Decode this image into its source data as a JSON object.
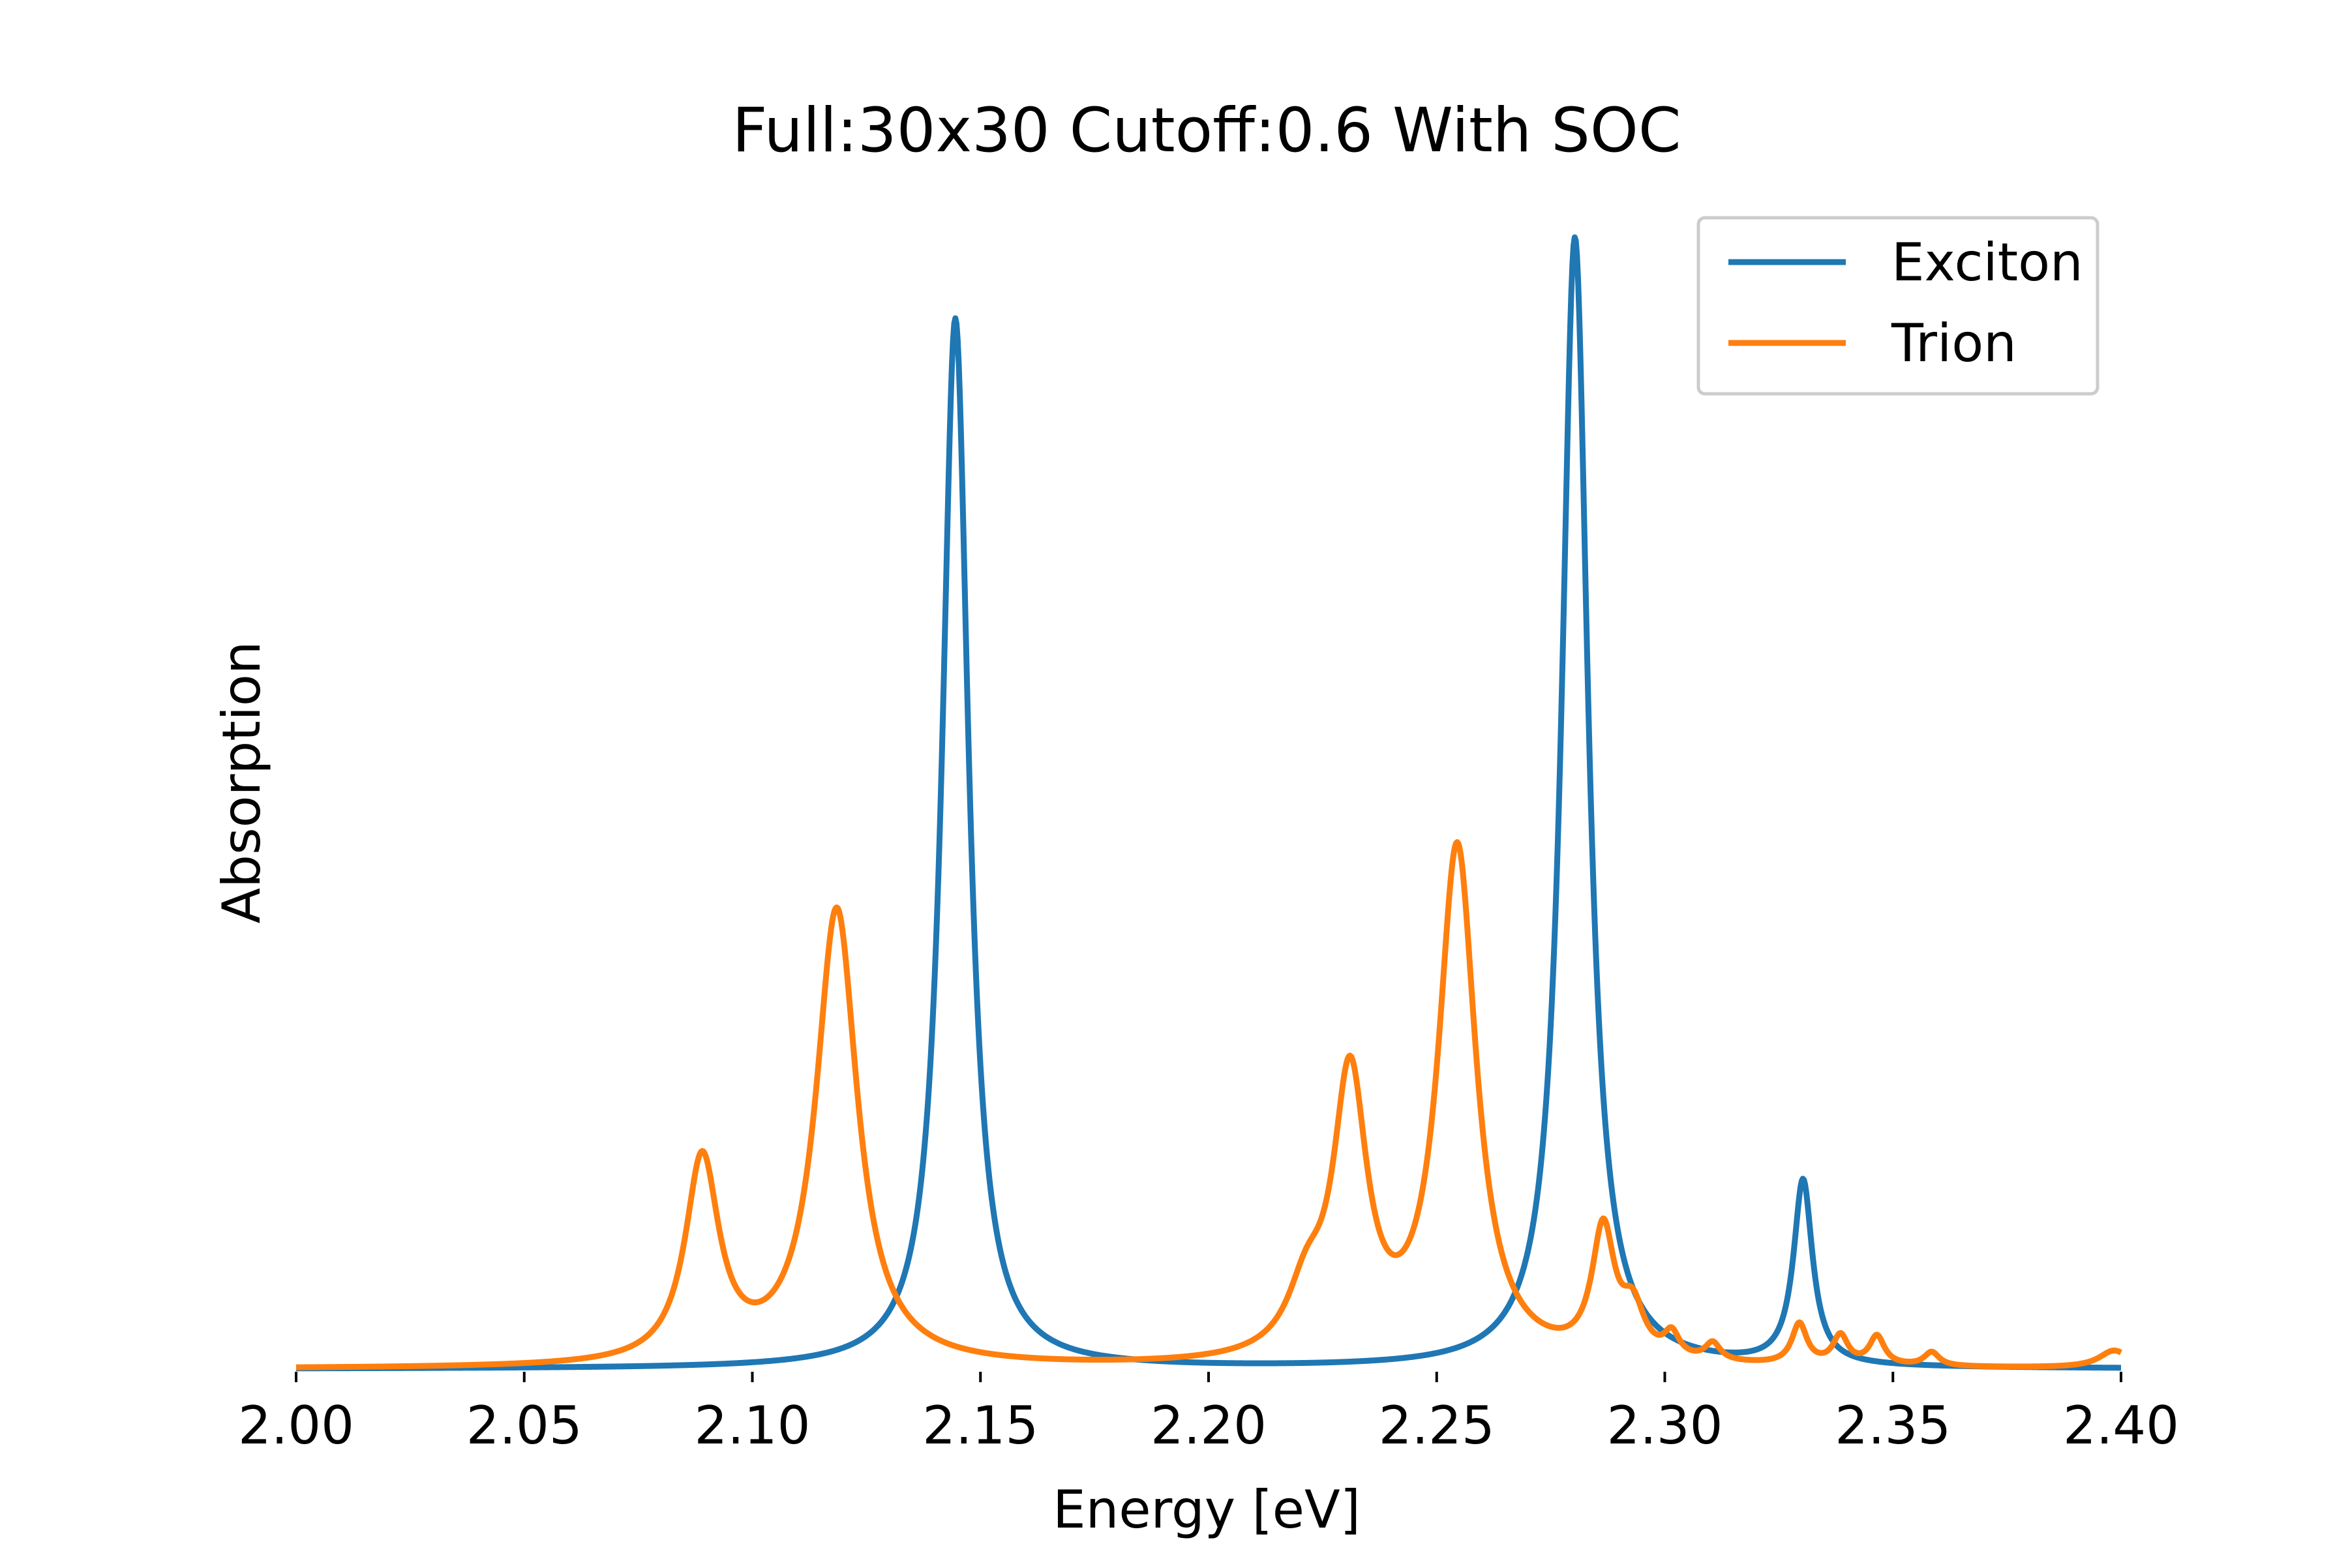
{
  "chart_data": {
    "type": "line",
    "title": "Full:30x30 Cutoff:0.6 With SOC",
    "xlabel": "Energy [eV]",
    "ylabel": "Absorption",
    "xlim": [
      2.0,
      2.4
    ],
    "ylim": [
      0,
      1.0
    ],
    "x_ticks": [
      "2.00",
      "2.05",
      "2.10",
      "2.15",
      "2.20",
      "2.25",
      "2.30",
      "2.35",
      "2.40"
    ],
    "y_ticks_shown": false,
    "grid": false,
    "legend_position": "top-right",
    "series": [
      {
        "name": "Exciton",
        "color": "#1f77b4",
        "peaks": [
          {
            "center": 2.1445,
            "amplitude": 0.91,
            "width": 0.0035
          },
          {
            "center": 2.2803,
            "amplitude": 0.98,
            "width": 0.0035
          },
          {
            "center": 2.3303,
            "amplitude": 0.16,
            "width": 0.0025
          }
        ],
        "baseline": 0.0
      },
      {
        "name": "Trion",
        "color": "#ff7f0e",
        "peaks": [
          {
            "center": 2.089,
            "amplitude": 0.175,
            "width": 0.0045
          },
          {
            "center": 2.1185,
            "amplitude": 0.395,
            "width": 0.0055
          },
          {
            "center": 2.2215,
            "amplitude": 0.05,
            "width": 0.005
          },
          {
            "center": 2.231,
            "amplitude": 0.24,
            "width": 0.0045
          },
          {
            "center": 2.2545,
            "amplitude": 0.445,
            "width": 0.005
          },
          {
            "center": 2.2865,
            "amplitude": 0.11,
            "width": 0.003
          },
          {
            "center": 2.293,
            "amplitude": 0.04,
            "width": 0.003
          },
          {
            "center": 2.3015,
            "amplitude": 0.02,
            "width": 0.002
          },
          {
            "center": 2.3105,
            "amplitude": 0.015,
            "width": 0.002
          },
          {
            "center": 2.3295,
            "amplitude": 0.035,
            "width": 0.002
          },
          {
            "center": 2.3385,
            "amplitude": 0.025,
            "width": 0.002
          },
          {
            "center": 2.3465,
            "amplitude": 0.025,
            "width": 0.002
          },
          {
            "center": 2.3585,
            "amplitude": 0.012,
            "width": 0.002
          },
          {
            "center": 2.3985,
            "amplitude": 0.015,
            "width": 0.004
          }
        ],
        "baseline": 0.0
      }
    ]
  }
}
